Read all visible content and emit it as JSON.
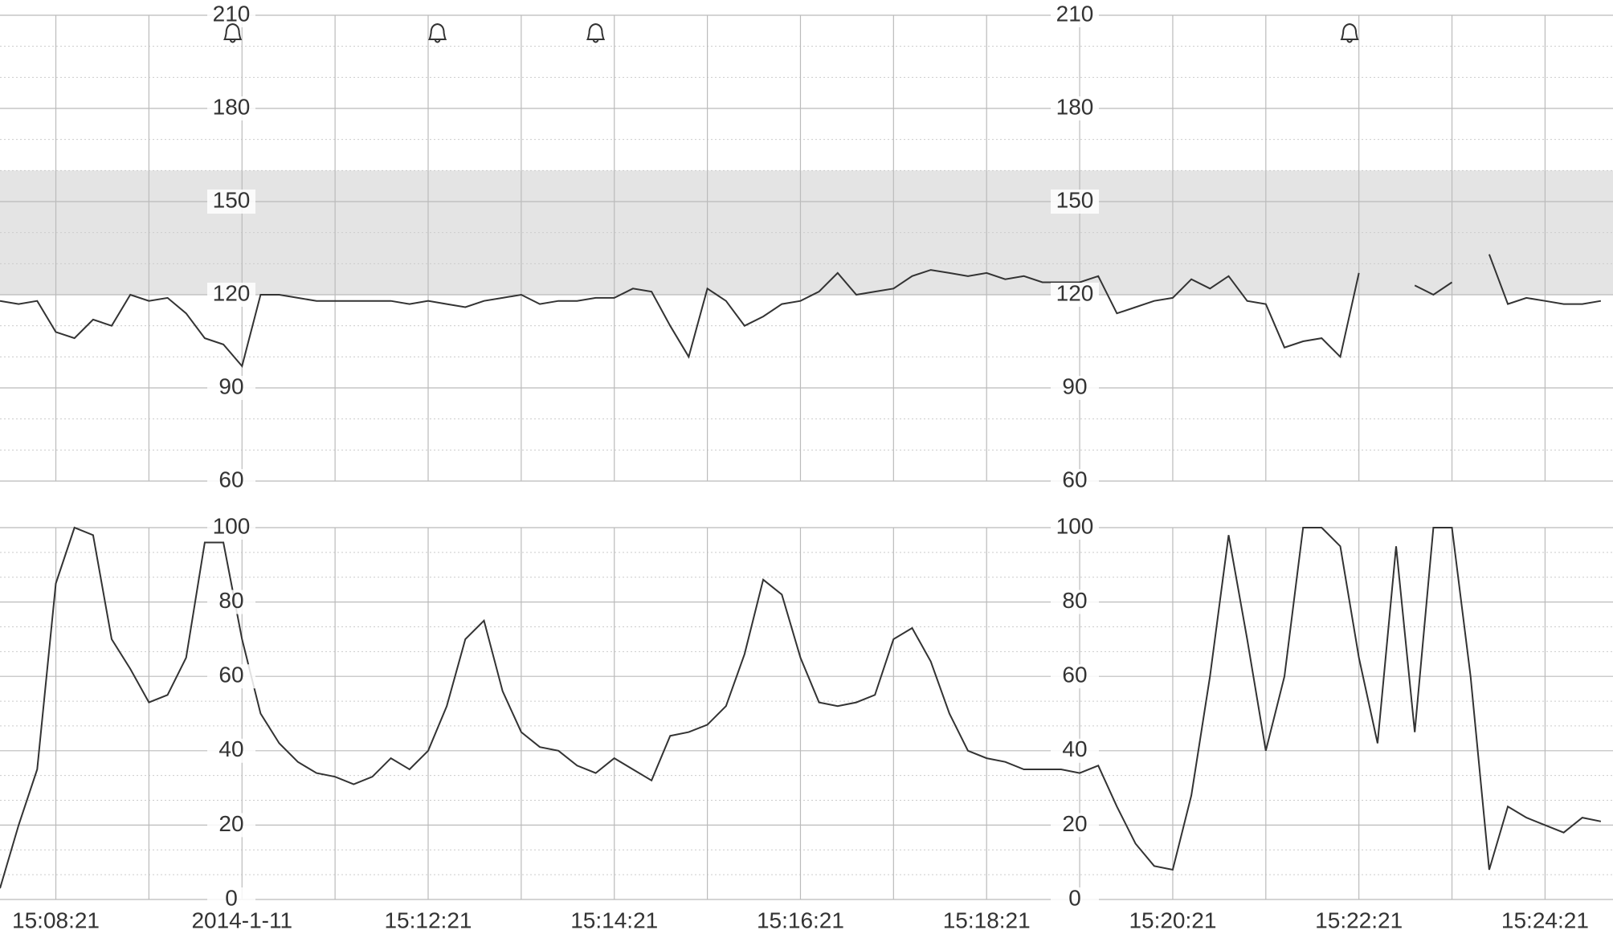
{
  "chart_data": [
    {
      "type": "line",
      "color": "#333333",
      "ylim": [
        60,
        210
      ],
      "yticks": [
        60,
        90,
        120,
        150,
        180,
        210
      ],
      "band": [
        120,
        160
      ],
      "band_color": "#e4e4e4",
      "grid": true,
      "xlim": [
        7.4,
        24.73
      ],
      "alarm_x": [
        9.9,
        12.1,
        13.8,
        21.9
      ],
      "x": [
        7.4,
        7.6,
        7.8,
        8.0,
        8.2,
        8.4,
        8.6,
        8.8,
        9.0,
        9.2,
        9.4,
        9.6,
        9.8,
        10.0,
        10.2,
        10.4,
        10.6,
        10.8,
        11.0,
        11.2,
        11.4,
        11.6,
        11.8,
        12.0,
        12.2,
        12.4,
        12.6,
        12.8,
        13.0,
        13.2,
        13.4,
        13.6,
        13.8,
        14.0,
        14.2,
        14.4,
        14.6,
        14.8,
        15.0,
        15.2,
        15.4,
        15.6,
        15.8,
        16.0,
        16.2,
        16.4,
        16.6,
        16.8,
        17.0,
        17.2,
        17.4,
        17.6,
        17.8,
        18.0,
        18.2,
        18.4,
        18.6,
        18.8,
        19.0,
        19.2,
        19.4,
        19.6,
        19.8,
        20.0,
        20.2,
        20.4,
        20.6,
        20.8,
        21.0,
        21.2,
        21.4,
        21.6,
        21.8,
        22.0,
        22.2,
        22.4,
        22.6,
        22.8,
        23.0,
        23.2,
        23.4,
        23.6,
        23.8,
        24.0,
        24.2,
        24.4,
        24.6
      ],
      "values": [
        118,
        117,
        118,
        108,
        106,
        112,
        110,
        120,
        118,
        119,
        114,
        106,
        104,
        97,
        120,
        120,
        119,
        118,
        118,
        118,
        118,
        118,
        117,
        118,
        117,
        116,
        118,
        119,
        120,
        117,
        118,
        118,
        119,
        119,
        122,
        121,
        110,
        100,
        122,
        118,
        110,
        113,
        117,
        118,
        121,
        127,
        120,
        121,
        122,
        126,
        128,
        127,
        126,
        127,
        125,
        126,
        124,
        124,
        124,
        126,
        114,
        116,
        118,
        119,
        125,
        122,
        126,
        118,
        117,
        103,
        105,
        106,
        100,
        127,
        null,
        null,
        123,
        120,
        124,
        null,
        133,
        117,
        119,
        118,
        117,
        117,
        118
      ]
    },
    {
      "type": "line",
      "color": "#333333",
      "ylim": [
        0,
        100
      ],
      "yticks": [
        0,
        20,
        40,
        60,
        80,
        100
      ],
      "grid": true,
      "xlim": [
        7.4,
        24.73
      ],
      "xticks": [
        {
          "value": 8,
          "label": "15:08:21"
        },
        {
          "value": 10,
          "label": "2014-1-11"
        },
        {
          "value": 12,
          "label": "15:12:21"
        },
        {
          "value": 14,
          "label": "15:14:21"
        },
        {
          "value": 16,
          "label": "15:16:21"
        },
        {
          "value": 18,
          "label": "15:18:21"
        },
        {
          "value": 20,
          "label": "15:20:21"
        },
        {
          "value": 22,
          "label": "15:22:21"
        },
        {
          "value": 24,
          "label": "15:24:21"
        }
      ],
      "x": [
        7.4,
        7.6,
        7.8,
        8.0,
        8.2,
        8.4,
        8.6,
        8.8,
        9.0,
        9.2,
        9.4,
        9.6,
        9.8,
        10.0,
        10.2,
        10.4,
        10.6,
        10.8,
        11.0,
        11.2,
        11.4,
        11.6,
        11.8,
        12.0,
        12.2,
        12.4,
        12.6,
        12.8,
        13.0,
        13.2,
        13.4,
        13.6,
        13.8,
        14.0,
        14.2,
        14.4,
        14.6,
        14.8,
        15.0,
        15.2,
        15.4,
        15.6,
        15.8,
        16.0,
        16.2,
        16.4,
        16.6,
        16.8,
        17.0,
        17.2,
        17.4,
        17.6,
        17.8,
        18.0,
        18.2,
        18.4,
        18.6,
        18.8,
        19.0,
        19.2,
        19.4,
        19.6,
        19.8,
        20.0,
        20.2,
        20.4,
        20.6,
        20.8,
        21.0,
        21.2,
        21.4,
        21.6,
        21.8,
        22.0,
        22.2,
        22.4,
        22.6,
        22.8,
        23.0,
        23.2,
        23.4,
        23.6,
        23.8,
        24.0,
        24.2,
        24.4,
        24.6
      ],
      "values": [
        3,
        20,
        35,
        85,
        100,
        98,
        70,
        62,
        53,
        55,
        65,
        96,
        96,
        70,
        50,
        42,
        37,
        34,
        33,
        31,
        33,
        38,
        35,
        40,
        52,
        70,
        75,
        56,
        45,
        41,
        40,
        36,
        34,
        38,
        35,
        32,
        44,
        45,
        47,
        52,
        66,
        86,
        82,
        65,
        53,
        52,
        53,
        55,
        70,
        73,
        64,
        50,
        40,
        38,
        37,
        35,
        35,
        35,
        34,
        36,
        25,
        15,
        9,
        8,
        28,
        60,
        98,
        70,
        40,
        60,
        100,
        100,
        95,
        65,
        42,
        95,
        45,
        100,
        100,
        60,
        8,
        25,
        22,
        20,
        18,
        22,
        21
      ]
    }
  ]
}
